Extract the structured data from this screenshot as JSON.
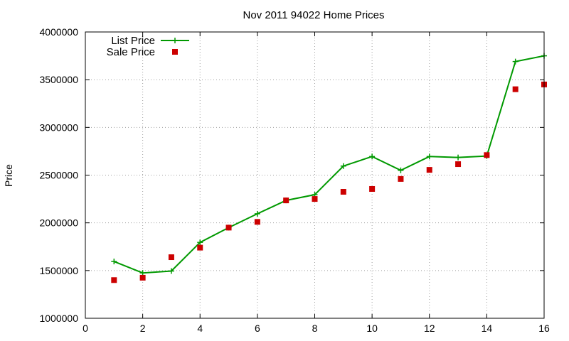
{
  "chart_data": {
    "type": "line",
    "title": "Nov 2011 94022 Home Prices",
    "xlabel": "",
    "ylabel": "Price",
    "xlim": [
      0,
      16
    ],
    "ylim": [
      1000000,
      4000000
    ],
    "xticks": [
      "0",
      "2",
      "4",
      "6",
      "8",
      "10",
      "12",
      "14",
      "16"
    ],
    "yticks": [
      "1000000",
      "1500000",
      "2000000",
      "2500000",
      "3000000",
      "3500000",
      "4000000"
    ],
    "grid": true,
    "legend_position": "top-left",
    "x": [
      1,
      2,
      3,
      4,
      5,
      6,
      7,
      8,
      9,
      10,
      11,
      12,
      13,
      14,
      15,
      16
    ],
    "series": [
      {
        "name": "List Price",
        "style": "line-plus",
        "color": "#009900",
        "values": [
          1595000,
          1475000,
          1495000,
          1795000,
          1950000,
          2095000,
          2235000,
          2295000,
          2595000,
          2695000,
          2550000,
          2695000,
          2685000,
          2700000,
          3690000,
          3750000
        ]
      },
      {
        "name": "Sale Price",
        "style": "square",
        "color": "#cc0000",
        "values": [
          1400000,
          1425000,
          1640000,
          1740000,
          1950000,
          2010000,
          2235000,
          2250000,
          2325000,
          2355000,
          2460000,
          2555000,
          2615000,
          2710000,
          3400000,
          3450000
        ]
      }
    ]
  }
}
